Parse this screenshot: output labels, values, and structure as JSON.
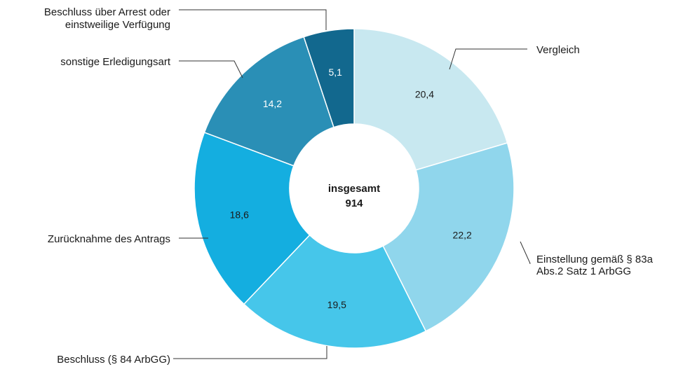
{
  "chart_data": {
    "type": "pie",
    "donut": true,
    "center_label": "insgesamt",
    "center_value": "914",
    "slices": [
      {
        "label_lines": [
          "Vergleich"
        ],
        "value": 20.4,
        "value_label": "20,4",
        "color": "#c8e8f0",
        "text_color": "#1a1a1a"
      },
      {
        "label_lines": [
          "Einstellung gemäß § 83a",
          "Abs.2 Satz 1 ArbGG"
        ],
        "value": 22.2,
        "value_label": "22,2",
        "color": "#90d6ec",
        "text_color": "#1a1a1a"
      },
      {
        "label_lines": [
          "Beschluss (§ 84 ArbGG)"
        ],
        "value": 19.5,
        "value_label": "19,5",
        "color": "#46c6ea",
        "text_color": "#1a1a1a"
      },
      {
        "label_lines": [
          "Zurücknahme des Antrags"
        ],
        "value": 18.6,
        "value_label": "18,6",
        "color": "#14aee0",
        "text_color": "#1a1a1a"
      },
      {
        "label_lines": [
          "sonstige Erledigungsart"
        ],
        "value": 14.2,
        "value_label": "14,2",
        "color": "#2a8fb6",
        "text_color": "#ffffff"
      },
      {
        "label_lines": [
          "Beschluss über Arrest oder",
          "einstweilige Verfügung"
        ],
        "value": 5.1,
        "value_label": "5,1",
        "color": "#12688e",
        "text_color": "#ffffff"
      }
    ]
  }
}
